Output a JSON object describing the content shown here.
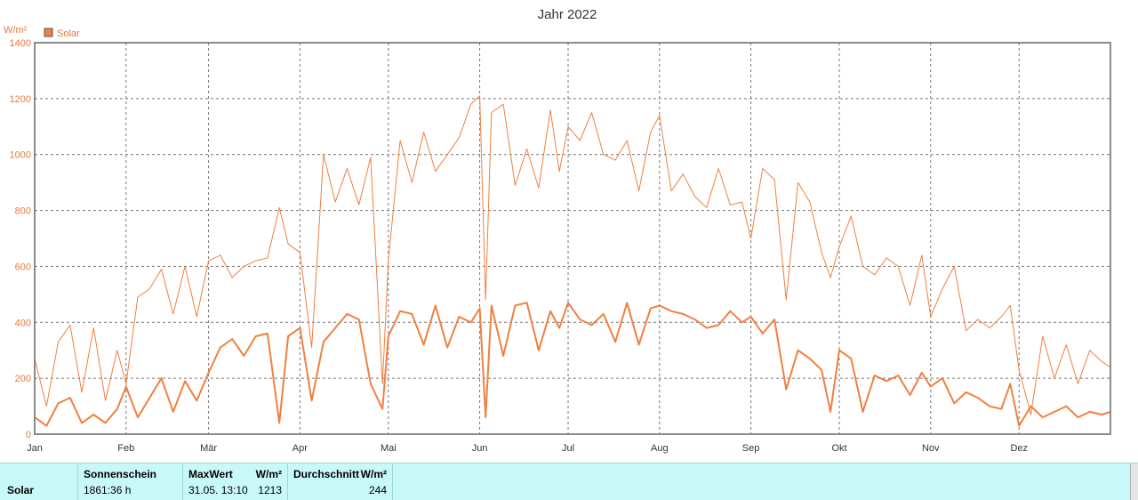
{
  "chart_data": {
    "type": "line",
    "title": "Jahr 2022",
    "ylabel": "W/m²",
    "ylim": [
      0,
      1400
    ],
    "yticks": [
      0,
      200,
      400,
      600,
      800,
      1000,
      1200,
      1400
    ],
    "xlim": [
      0,
      365
    ],
    "grid": true,
    "legend_position": "top-left",
    "months": [
      {
        "label": "Jan",
        "day": 0
      },
      {
        "label": "Feb",
        "day": 31
      },
      {
        "label": "Mär",
        "day": 59
      },
      {
        "label": "Apr",
        "day": 90
      },
      {
        "label": "Mai",
        "day": 120
      },
      {
        "label": "Jun",
        "day": 151
      },
      {
        "label": "Jul",
        "day": 181
      },
      {
        "label": "Aug",
        "day": 212
      },
      {
        "label": "Sep",
        "day": 243
      },
      {
        "label": "Okt",
        "day": 273
      },
      {
        "label": "Nov",
        "day": 304
      },
      {
        "label": "Dez",
        "day": 334
      }
    ],
    "series": [
      {
        "name": "Solar",
        "color": "#f08040",
        "role": "max",
        "x": [
          0,
          4,
          8,
          12,
          16,
          20,
          24,
          28,
          31,
          35,
          39,
          43,
          47,
          51,
          55,
          59,
          63,
          67,
          71,
          75,
          79,
          83,
          86,
          90,
          94,
          98,
          102,
          106,
          110,
          114,
          118,
          120,
          124,
          128,
          132,
          136,
          140,
          144,
          148,
          151,
          153,
          155,
          159,
          163,
          167,
          171,
          175,
          178,
          181,
          185,
          189,
          193,
          197,
          201,
          205,
          209,
          212,
          216,
          220,
          224,
          228,
          232,
          236,
          240,
          243,
          247,
          251,
          255,
          259,
          263,
          267,
          270,
          273,
          277,
          281,
          285,
          289,
          293,
          297,
          301,
          304,
          308,
          312,
          316,
          320,
          324,
          328,
          331,
          334,
          338,
          342,
          346,
          350,
          354,
          358,
          362,
          365
        ],
        "y": [
          270,
          100,
          330,
          390,
          150,
          380,
          120,
          300,
          180,
          490,
          520,
          590,
          430,
          600,
          420,
          620,
          640,
          560,
          600,
          620,
          630,
          810,
          680,
          650,
          310,
          1000,
          830,
          950,
          820,
          990,
          180,
          620,
          1050,
          900,
          1080,
          940,
          1000,
          1060,
          1180,
          1210,
          480,
          1150,
          1180,
          890,
          1020,
          880,
          1160,
          940,
          1100,
          1050,
          1150,
          1000,
          980,
          1050,
          870,
          1080,
          1140,
          870,
          930,
          850,
          810,
          950,
          820,
          830,
          700,
          950,
          910,
          480,
          900,
          830,
          650,
          560,
          670,
          780,
          600,
          570,
          630,
          600,
          460,
          640,
          420,
          520,
          600,
          370,
          410,
          380,
          420,
          460,
          230,
          70,
          350,
          200,
          320,
          180,
          300,
          260,
          240
        ]
      },
      {
        "name": "Solar",
        "color": "#f08040",
        "role": "mean",
        "x": [
          0,
          4,
          8,
          12,
          16,
          20,
          24,
          28,
          31,
          35,
          39,
          43,
          47,
          51,
          55,
          59,
          63,
          67,
          71,
          75,
          79,
          83,
          86,
          90,
          94,
          98,
          102,
          106,
          110,
          114,
          118,
          120,
          124,
          128,
          132,
          136,
          140,
          144,
          148,
          151,
          153,
          155,
          159,
          163,
          167,
          171,
          175,
          178,
          181,
          185,
          189,
          193,
          197,
          201,
          205,
          209,
          212,
          216,
          220,
          224,
          228,
          232,
          236,
          240,
          243,
          247,
          251,
          255,
          259,
          263,
          267,
          270,
          273,
          277,
          281,
          285,
          289,
          293,
          297,
          301,
          304,
          308,
          312,
          316,
          320,
          324,
          328,
          331,
          334,
          338,
          342,
          346,
          350,
          354,
          358,
          362,
          365
        ],
        "y": [
          60,
          30,
          110,
          130,
          40,
          70,
          40,
          90,
          170,
          60,
          130,
          200,
          80,
          190,
          120,
          220,
          310,
          340,
          280,
          350,
          360,
          40,
          350,
          380,
          120,
          330,
          380,
          430,
          410,
          180,
          90,
          350,
          440,
          430,
          320,
          460,
          310,
          420,
          400,
          450,
          60,
          460,
          280,
          460,
          470,
          300,
          440,
          380,
          470,
          410,
          390,
          430,
          330,
          470,
          320,
          450,
          460,
          440,
          430,
          410,
          380,
          390,
          440,
          400,
          420,
          360,
          410,
          160,
          300,
          270,
          230,
          80,
          300,
          270,
          80,
          210,
          190,
          210,
          140,
          220,
          170,
          200,
          110,
          150,
          130,
          100,
          90,
          180,
          30,
          100,
          60,
          80,
          100,
          60,
          80,
          70,
          80
        ]
      }
    ]
  },
  "stats": {
    "row_label": "Solar",
    "sunshine_header": "Sonnenschein",
    "sunshine_value": "1861:36 h",
    "max_header": "MaxWert",
    "max_unit": "W/m²",
    "max_date": "31.05.  13:10",
    "max_value": "1213",
    "avg_header": "Durchschnitt",
    "avg_unit": "W/m²",
    "avg_value": "244"
  }
}
